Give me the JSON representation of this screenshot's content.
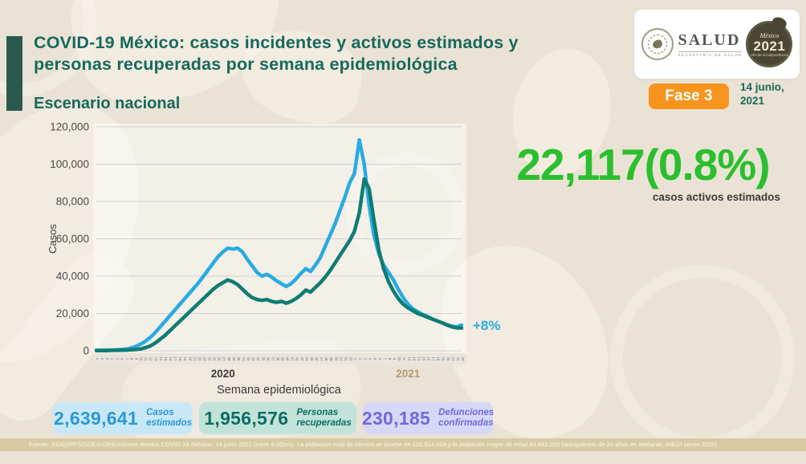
{
  "header": {
    "title_line1": "COVID-19 México: casos incidentes y activos estimados y",
    "title_line2": "personas recuperadas por semana epidemiológica",
    "subtitle": "Escenario nacional",
    "phase_badge": "Fase 3",
    "date_line1": "14 junio,",
    "date_line2": "2021",
    "salud_logo": {
      "name": "SALUD",
      "sub": "SECRETARÍA DE SALUD"
    },
    "mexico_2021_logo": {
      "word": "México",
      "year": "2021",
      "sub": "Año de la Independencia"
    }
  },
  "highlight": {
    "value": "22,117(0.8%)",
    "label": "casos activos estimados",
    "color": "#2abf2d"
  },
  "annotation": {
    "text": "+8%",
    "color": "#29abe2"
  },
  "chart_data": {
    "type": "line",
    "title": "",
    "xlabel": "Semana epidemiológica",
    "ylabel": "Casos",
    "ylim": [
      0,
      120000
    ],
    "grid": true,
    "legend_position": "none",
    "yticks": [
      "0",
      "20,000",
      "40,000",
      "60,000",
      "80,000",
      "100,000",
      "120,000"
    ],
    "x_groups": [
      {
        "label": "2020",
        "weeks": 53,
        "label_color": "#3d3d3d"
      },
      {
        "label": "2021",
        "weeks": 23,
        "label_color": "#b49b72"
      }
    ],
    "series": [
      {
        "name": "Casos incidentes estimados",
        "color": "#29abe2",
        "values": [
          300,
          350,
          400,
          450,
          550,
          700,
          900,
          1400,
          2200,
          3500,
          5000,
          7000,
          9500,
          12500,
          15500,
          18500,
          21500,
          24500,
          27500,
          30500,
          33500,
          36500,
          40000,
          43500,
          47000,
          50500,
          53000,
          55000,
          54500,
          55000,
          53000,
          49000,
          45500,
          42000,
          40000,
          41000,
          39500,
          37500,
          36000,
          34500,
          36000,
          38500,
          41500,
          44000,
          42500,
          46000,
          50000,
          56000,
          62000,
          68000,
          75000,
          82000,
          90000,
          95000,
          113000,
          100000,
          78000,
          62000,
          52000,
          46000,
          42000,
          38000,
          33000,
          28500,
          25000,
          22500,
          21000,
          19500,
          18500,
          17000,
          16000,
          15000,
          14000,
          13200,
          12800,
          13800
        ]
      },
      {
        "name": "Personas recuperadas",
        "color": "#0f7c72",
        "values": [
          100,
          100,
          150,
          200,
          250,
          300,
          400,
          500,
          700,
          1000,
          1600,
          2500,
          4000,
          6000,
          8000,
          10500,
          13000,
          15500,
          18000,
          20500,
          23000,
          25500,
          28000,
          30500,
          33000,
          35000,
          36500,
          38000,
          37000,
          35500,
          33000,
          30500,
          28500,
          27500,
          27000,
          27500,
          26500,
          26000,
          26500,
          25500,
          26500,
          28000,
          30000,
          32500,
          31500,
          34000,
          36500,
          39500,
          43000,
          47000,
          51000,
          55000,
          59000,
          64000,
          74000,
          92000,
          87000,
          70000,
          54000,
          44000,
          37000,
          32000,
          28000,
          25000,
          23000,
          21500,
          20000,
          19000,
          18000,
          17000,
          16000,
          15000,
          13800,
          12800,
          12300,
          12200
        ]
      }
    ]
  },
  "stats": [
    {
      "value": "2,639,641",
      "label": "Casos estimados",
      "bg": "#c8e8f7",
      "color": "#2f97d4"
    },
    {
      "value": "1,956,576",
      "label": "Personas recuperadas",
      "bg": "#c2e3da",
      "color": "#0d6e63"
    },
    {
      "value": "230,185",
      "label": "Defunciones confirmadas",
      "bg": "#d7d8f7",
      "color": "#6f6ad9"
    }
  ],
  "footer": {
    "source": "Fuente: SSA|SPPS/DGE/InDRE/Informe técnico.COVID-19 /México- 14 junio 2021 (corte 9:00hrs). La población total de México se asume en 126,014,024 y la población mayor de edad 83,452,050 (quinquenios de 20 años en adelante, INEGI censo 2020)"
  }
}
